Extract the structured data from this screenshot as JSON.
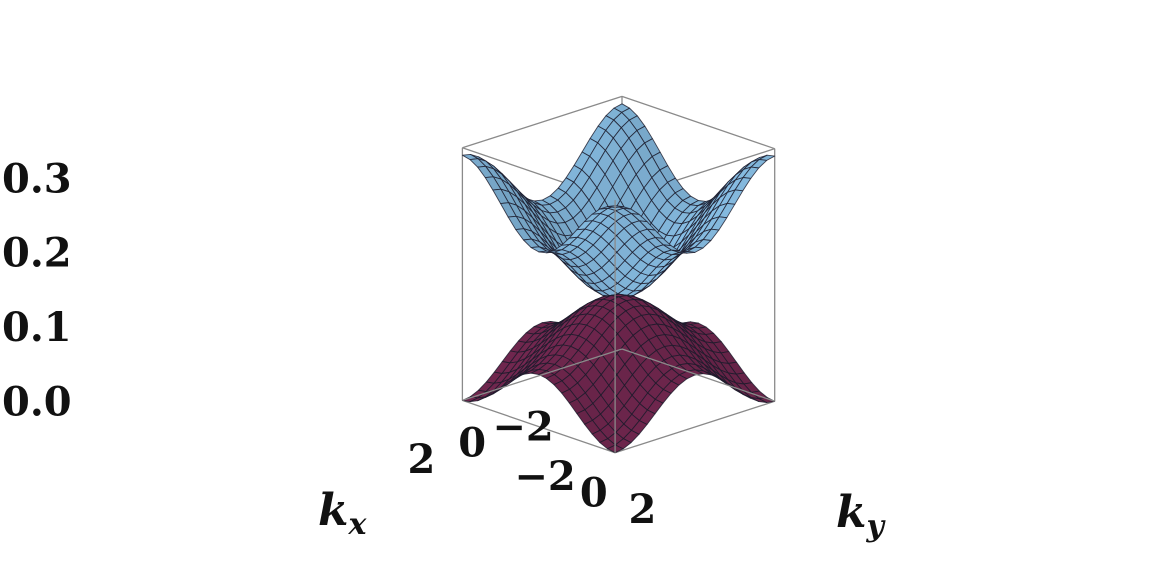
{
  "chart_data": {
    "type": "surface3d",
    "x_range": [
      -3.14159,
      3.14159
    ],
    "y_range": [
      -3.14159,
      3.14159
    ],
    "zlim": [
      0,
      0.34
    ],
    "z_ticks": [
      "0.0",
      "0.1",
      "0.2",
      "0.3"
    ],
    "x_ticks": [
      "−2",
      "0",
      "2"
    ],
    "y_ticks": [
      "−2",
      "0",
      "2"
    ],
    "xlabel": {
      "main": "k",
      "sub": "x"
    },
    "ylabel": {
      "main": "k",
      "sub": "y"
    },
    "mesh_divisions": 20,
    "series": [
      {
        "role": "upper-band",
        "z_at_gamma": 0.14,
        "z_at_corners": 0.33,
        "z_at_axis_ends": 0.33,
        "z_at_zone_edge_saddle": 0.22,
        "color": "#8fc8f0"
      },
      {
        "role": "lower-band",
        "z_at_gamma": 0.14,
        "z_at_axis_ends": 0.14,
        "z_at_corners": 0.0,
        "color": "#7a2a55"
      }
    ]
  }
}
